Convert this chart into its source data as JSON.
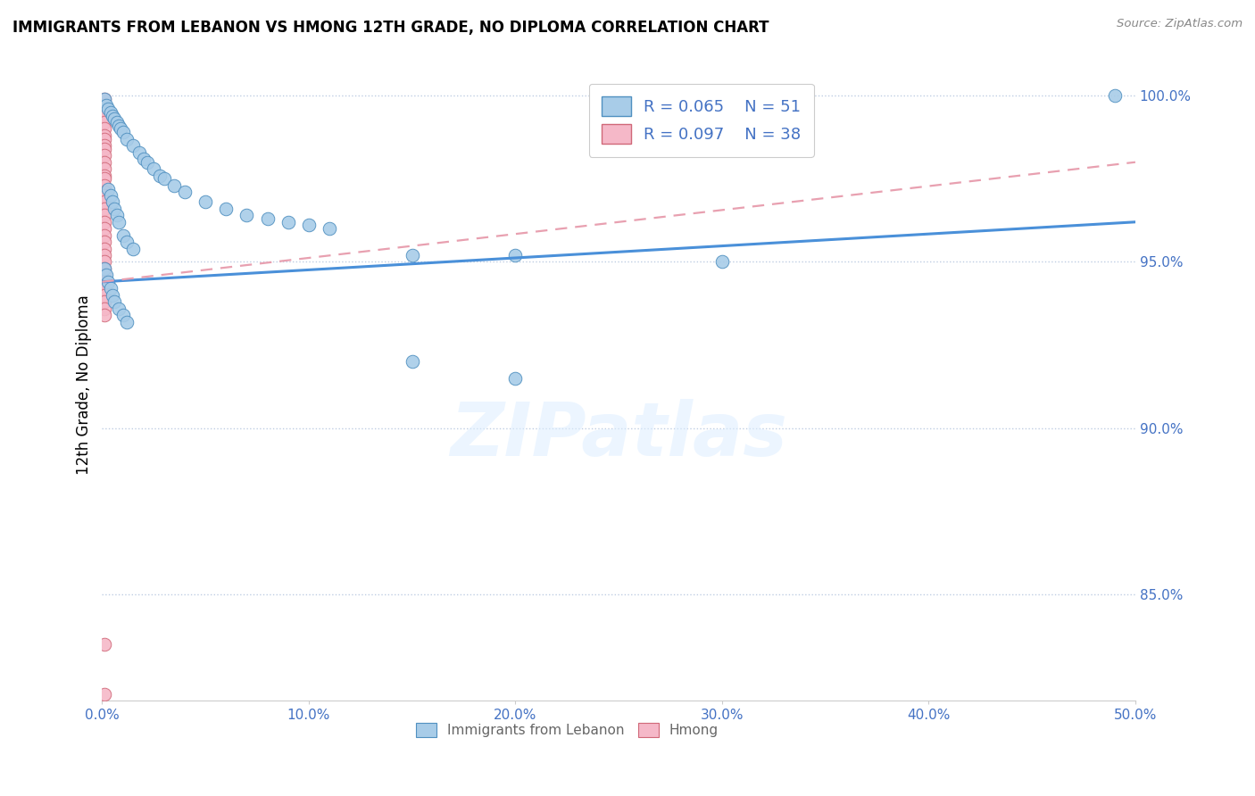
{
  "title": "IMMIGRANTS FROM LEBANON VS HMONG 12TH GRADE, NO DIPLOMA CORRELATION CHART",
  "source": "Source: ZipAtlas.com",
  "legend_label1": "Immigrants from Lebanon",
  "legend_label2": "Hmong",
  "R1": 0.065,
  "N1": 51,
  "R2": 0.097,
  "N2": 38,
  "xlim": [
    0.0,
    0.5
  ],
  "ylim": [
    0.818,
    1.008
  ],
  "xticks": [
    0.0,
    0.1,
    0.2,
    0.3,
    0.4,
    0.5
  ],
  "xtick_labels": [
    "0.0%",
    "10.0%",
    "20.0%",
    "30.0%",
    "40.0%",
    "50.0%"
  ],
  "yticks": [
    0.85,
    0.9,
    0.95,
    1.0
  ],
  "ytick_labels": [
    "85.0%",
    "90.0%",
    "95.0%",
    "100.0%"
  ],
  "color_blue": "#a8cce8",
  "color_pink": "#f5b8c8",
  "color_line_blue": "#4a90d9",
  "color_line_pink": "#e8a0b0",
  "watermark": "ZIPatlas",
  "blue_x": [
    0.001,
    0.002,
    0.003,
    0.004,
    0.005,
    0.006,
    0.007,
    0.008,
    0.009,
    0.01,
    0.012,
    0.015,
    0.018,
    0.02,
    0.022,
    0.025,
    0.028,
    0.03,
    0.035,
    0.04,
    0.05,
    0.06,
    0.07,
    0.08,
    0.09,
    0.1,
    0.11,
    0.003,
    0.004,
    0.005,
    0.006,
    0.007,
    0.008,
    0.01,
    0.012,
    0.015,
    0.15,
    0.2,
    0.3,
    0.49,
    0.001,
    0.002,
    0.003,
    0.004,
    0.005,
    0.006,
    0.008,
    0.01,
    0.012,
    0.15,
    0.2
  ],
  "blue_y": [
    0.999,
    0.997,
    0.996,
    0.995,
    0.994,
    0.993,
    0.992,
    0.991,
    0.99,
    0.989,
    0.987,
    0.985,
    0.983,
    0.981,
    0.98,
    0.978,
    0.976,
    0.975,
    0.973,
    0.971,
    0.968,
    0.966,
    0.964,
    0.963,
    0.962,
    0.961,
    0.96,
    0.972,
    0.97,
    0.968,
    0.966,
    0.964,
    0.962,
    0.958,
    0.956,
    0.954,
    0.952,
    0.952,
    0.95,
    1.0,
    0.948,
    0.946,
    0.944,
    0.942,
    0.94,
    0.938,
    0.936,
    0.934,
    0.932,
    0.92,
    0.915
  ],
  "pink_x": [
    0.001,
    0.001,
    0.001,
    0.001,
    0.001,
    0.001,
    0.001,
    0.001,
    0.001,
    0.001,
    0.001,
    0.001,
    0.001,
    0.001,
    0.001,
    0.001,
    0.001,
    0.001,
    0.001,
    0.001,
    0.001,
    0.001,
    0.001,
    0.001,
    0.001,
    0.001,
    0.001,
    0.001,
    0.001,
    0.001,
    0.001,
    0.001,
    0.001,
    0.001,
    0.001,
    0.001,
    0.001,
    0.001
  ],
  "pink_y": [
    0.999,
    0.997,
    0.996,
    0.994,
    0.992,
    0.99,
    0.988,
    0.987,
    0.985,
    0.984,
    0.982,
    0.98,
    0.978,
    0.976,
    0.975,
    0.973,
    0.971,
    0.97,
    0.968,
    0.966,
    0.964,
    0.962,
    0.96,
    0.958,
    0.956,
    0.954,
    0.952,
    0.95,
    0.948,
    0.946,
    0.944,
    0.942,
    0.94,
    0.938,
    0.936,
    0.934,
    0.82,
    0.835
  ],
  "blue_trend_x": [
    0.0,
    0.5
  ],
  "blue_trend_y": [
    0.944,
    0.962
  ],
  "pink_trend_x": [
    0.0,
    0.5
  ],
  "pink_trend_y": [
    0.944,
    0.98
  ]
}
